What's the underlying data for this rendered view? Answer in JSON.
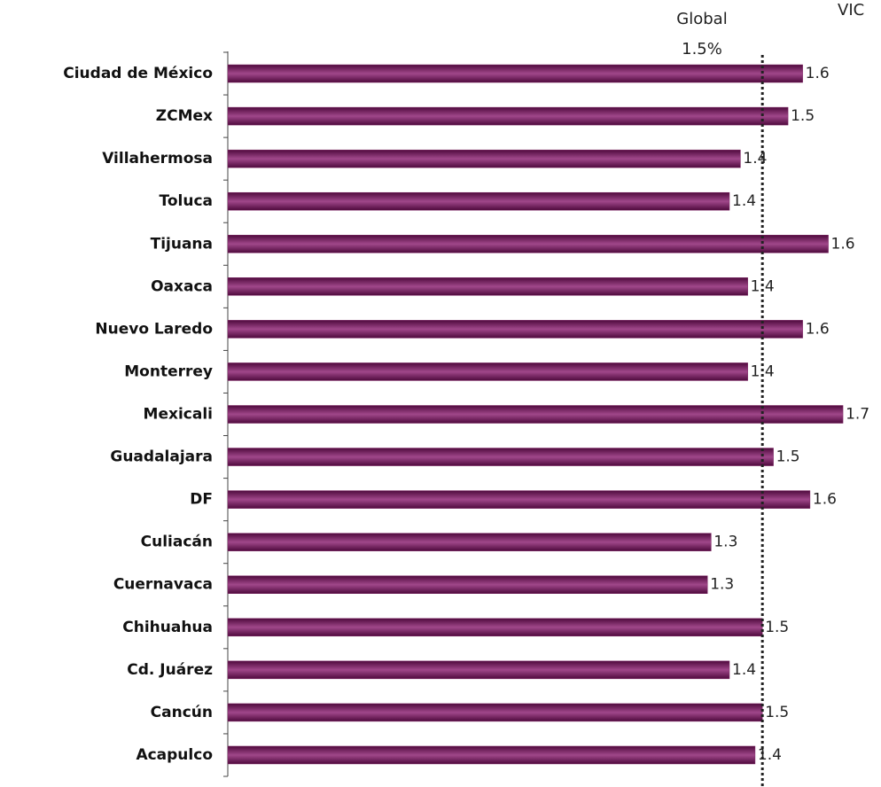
{
  "chart_data": {
    "type": "bar",
    "orientation": "horizontal",
    "title": "VIC",
    "categories": [
      "Ciudad de México",
      "ZCMex",
      "Villahermosa",
      "Toluca",
      "Tijuana",
      "Oaxaca",
      "Nuevo Laredo",
      "Monterrey",
      "Mexicali",
      "Guadalajara",
      "DF",
      "Culiacán",
      "Cuernavaca",
      "Chihuahua",
      "Cd. Juárez",
      "Cancún",
      "Acapulco"
    ],
    "values": [
      1.57,
      1.53,
      1.4,
      1.37,
      1.64,
      1.42,
      1.57,
      1.42,
      1.68,
      1.49,
      1.59,
      1.32,
      1.31,
      1.46,
      1.37,
      1.46,
      1.44
    ],
    "value_labels": [
      "1.6",
      "1.5",
      "1.4",
      "1.4",
      "1.6",
      "1.4",
      "1.6",
      "1.4",
      "1.7",
      "1.5",
      "1.6",
      "1.3",
      "1.3",
      "1.5",
      "1.4",
      "1.5",
      "1.4"
    ],
    "color": "#7d2463",
    "xlim": [
      0,
      1.75
    ],
    "reference_line": {
      "label": "Global",
      "value": 1.46,
      "value_label": "1.5%"
    }
  }
}
